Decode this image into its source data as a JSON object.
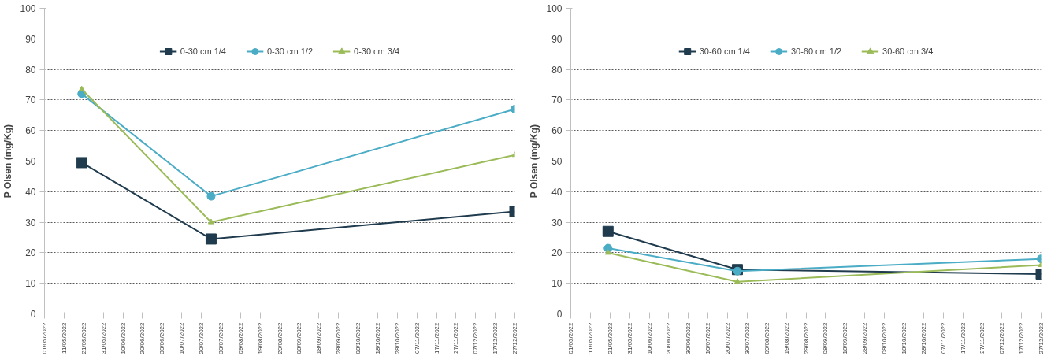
{
  "chart_data": [
    {
      "type": "line",
      "ylabel": "P Olsen (mg/Kg)",
      "x": [
        "2022-05-20",
        "2022-07-25",
        "2022-12-27"
      ],
      "series": [
        {
          "name": "0-30 cm 1/4",
          "color": "#1f3b4d",
          "marker": "square",
          "values": [
            49.5,
            24.5,
            33.5
          ]
        },
        {
          "name": "0-30 cm 1/2",
          "color": "#4bacc6",
          "marker": "circle",
          "values": [
            72,
            38.5,
            67
          ]
        },
        {
          "name": "0-30 cm 3/4",
          "color": "#9bbb59",
          "marker": "triangle",
          "values": [
            73.5,
            30,
            52
          ]
        }
      ],
      "xlim": [
        "2022-05-01",
        "2022-12-27"
      ],
      "xticks": [
        {
          "value": "2022-05-01",
          "label": "01/05/2022"
        },
        {
          "value": "2022-05-11",
          "label": "11/05/2022"
        },
        {
          "value": "2022-05-21",
          "label": "21/05/2022"
        },
        {
          "value": "2022-05-31",
          "label": "31/05/2022"
        },
        {
          "value": "2022-06-10",
          "label": "10/06/2022"
        },
        {
          "value": "2022-06-20",
          "label": "20/06/2022"
        },
        {
          "value": "2022-06-30",
          "label": "30/06/2022"
        },
        {
          "value": "2022-07-10",
          "label": "10/07/2022"
        },
        {
          "value": "2022-07-20",
          "label": "20/07/2022"
        },
        {
          "value": "2022-07-30",
          "label": "30/07/2022"
        },
        {
          "value": "2022-08-09",
          "label": "09/08/2022"
        },
        {
          "value": "2022-08-19",
          "label": "19/08/2022"
        },
        {
          "value": "2022-08-29",
          "label": "29/08/2022"
        },
        {
          "value": "2022-09-08",
          "label": "08/09/2022"
        },
        {
          "value": "2022-09-18",
          "label": "18/09/2022"
        },
        {
          "value": "2022-09-28",
          "label": "28/09/2022"
        },
        {
          "value": "2022-10-08",
          "label": "08/10/2022"
        },
        {
          "value": "2022-10-18",
          "label": "18/10/2022"
        },
        {
          "value": "2022-10-28",
          "label": "28/10/2022"
        },
        {
          "value": "2022-11-07",
          "label": "07/11/2022"
        },
        {
          "value": "2022-11-17",
          "label": "17/11/2022"
        },
        {
          "value": "2022-11-27",
          "label": "27/11/2022"
        },
        {
          "value": "2022-12-07",
          "label": "07/12/2022"
        },
        {
          "value": "2022-12-17",
          "label": "17/12/2022"
        },
        {
          "value": "2022-12-27",
          "label": "27/12/2022"
        }
      ],
      "ylim": [
        0,
        100
      ],
      "yticks": [
        0,
        10,
        20,
        30,
        40,
        50,
        60,
        70,
        80,
        90,
        100
      ],
      "grid": "y",
      "legend": "top"
    },
    {
      "type": "line",
      "ylabel": "P Olsen (mg/Kg)",
      "x": [
        "2022-05-20",
        "2022-07-25",
        "2022-12-27"
      ],
      "series": [
        {
          "name": "30-60 cm 1/4",
          "color": "#1f3b4d",
          "marker": "square",
          "values": [
            27,
            14.5,
            13
          ]
        },
        {
          "name": "30-60 cm 1/2",
          "color": "#4bacc6",
          "marker": "circle",
          "values": [
            21.5,
            14,
            18
          ]
        },
        {
          "name": "30-60 cm 3/4",
          "color": "#9bbb59",
          "marker": "triangle",
          "values": [
            20,
            10.5,
            16
          ]
        }
      ],
      "xlim": [
        "2022-05-01",
        "2022-12-27"
      ],
      "xticks": [
        {
          "value": "2022-05-01",
          "label": "01/05/2022"
        },
        {
          "value": "2022-05-11",
          "label": "11/05/2022"
        },
        {
          "value": "2022-05-21",
          "label": "21/05/2022"
        },
        {
          "value": "2022-05-31",
          "label": "31/05/2022"
        },
        {
          "value": "2022-06-10",
          "label": "10/06/2022"
        },
        {
          "value": "2022-06-20",
          "label": "20/06/2022"
        },
        {
          "value": "2022-06-30",
          "label": "30/06/2022"
        },
        {
          "value": "2022-07-10",
          "label": "10/07/2022"
        },
        {
          "value": "2022-07-20",
          "label": "20/07/2022"
        },
        {
          "value": "2022-07-30",
          "label": "30/07/2022"
        },
        {
          "value": "2022-08-09",
          "label": "09/08/2022"
        },
        {
          "value": "2022-08-19",
          "label": "19/08/2022"
        },
        {
          "value": "2022-08-29",
          "label": "29/08/2022"
        },
        {
          "value": "2022-09-08",
          "label": "08/09/2022"
        },
        {
          "value": "2022-09-18",
          "label": "18/09/2022"
        },
        {
          "value": "2022-09-28",
          "label": "28/09/2022"
        },
        {
          "value": "2022-10-08",
          "label": "08/10/2022"
        },
        {
          "value": "2022-10-18",
          "label": "18/10/2022"
        },
        {
          "value": "2022-10-28",
          "label": "28/10/2022"
        },
        {
          "value": "2022-11-07",
          "label": "07/11/2022"
        },
        {
          "value": "2022-11-17",
          "label": "17/11/2022"
        },
        {
          "value": "2022-11-27",
          "label": "27/11/2022"
        },
        {
          "value": "2022-12-07",
          "label": "07/12/2022"
        },
        {
          "value": "2022-12-17",
          "label": "17/12/2022"
        },
        {
          "value": "2022-12-27",
          "label": "27/12/2022"
        }
      ],
      "ylim": [
        0,
        100
      ],
      "yticks": [
        0,
        10,
        20,
        30,
        40,
        50,
        60,
        70,
        80,
        90,
        100
      ],
      "grid": "y",
      "legend": "top"
    }
  ]
}
